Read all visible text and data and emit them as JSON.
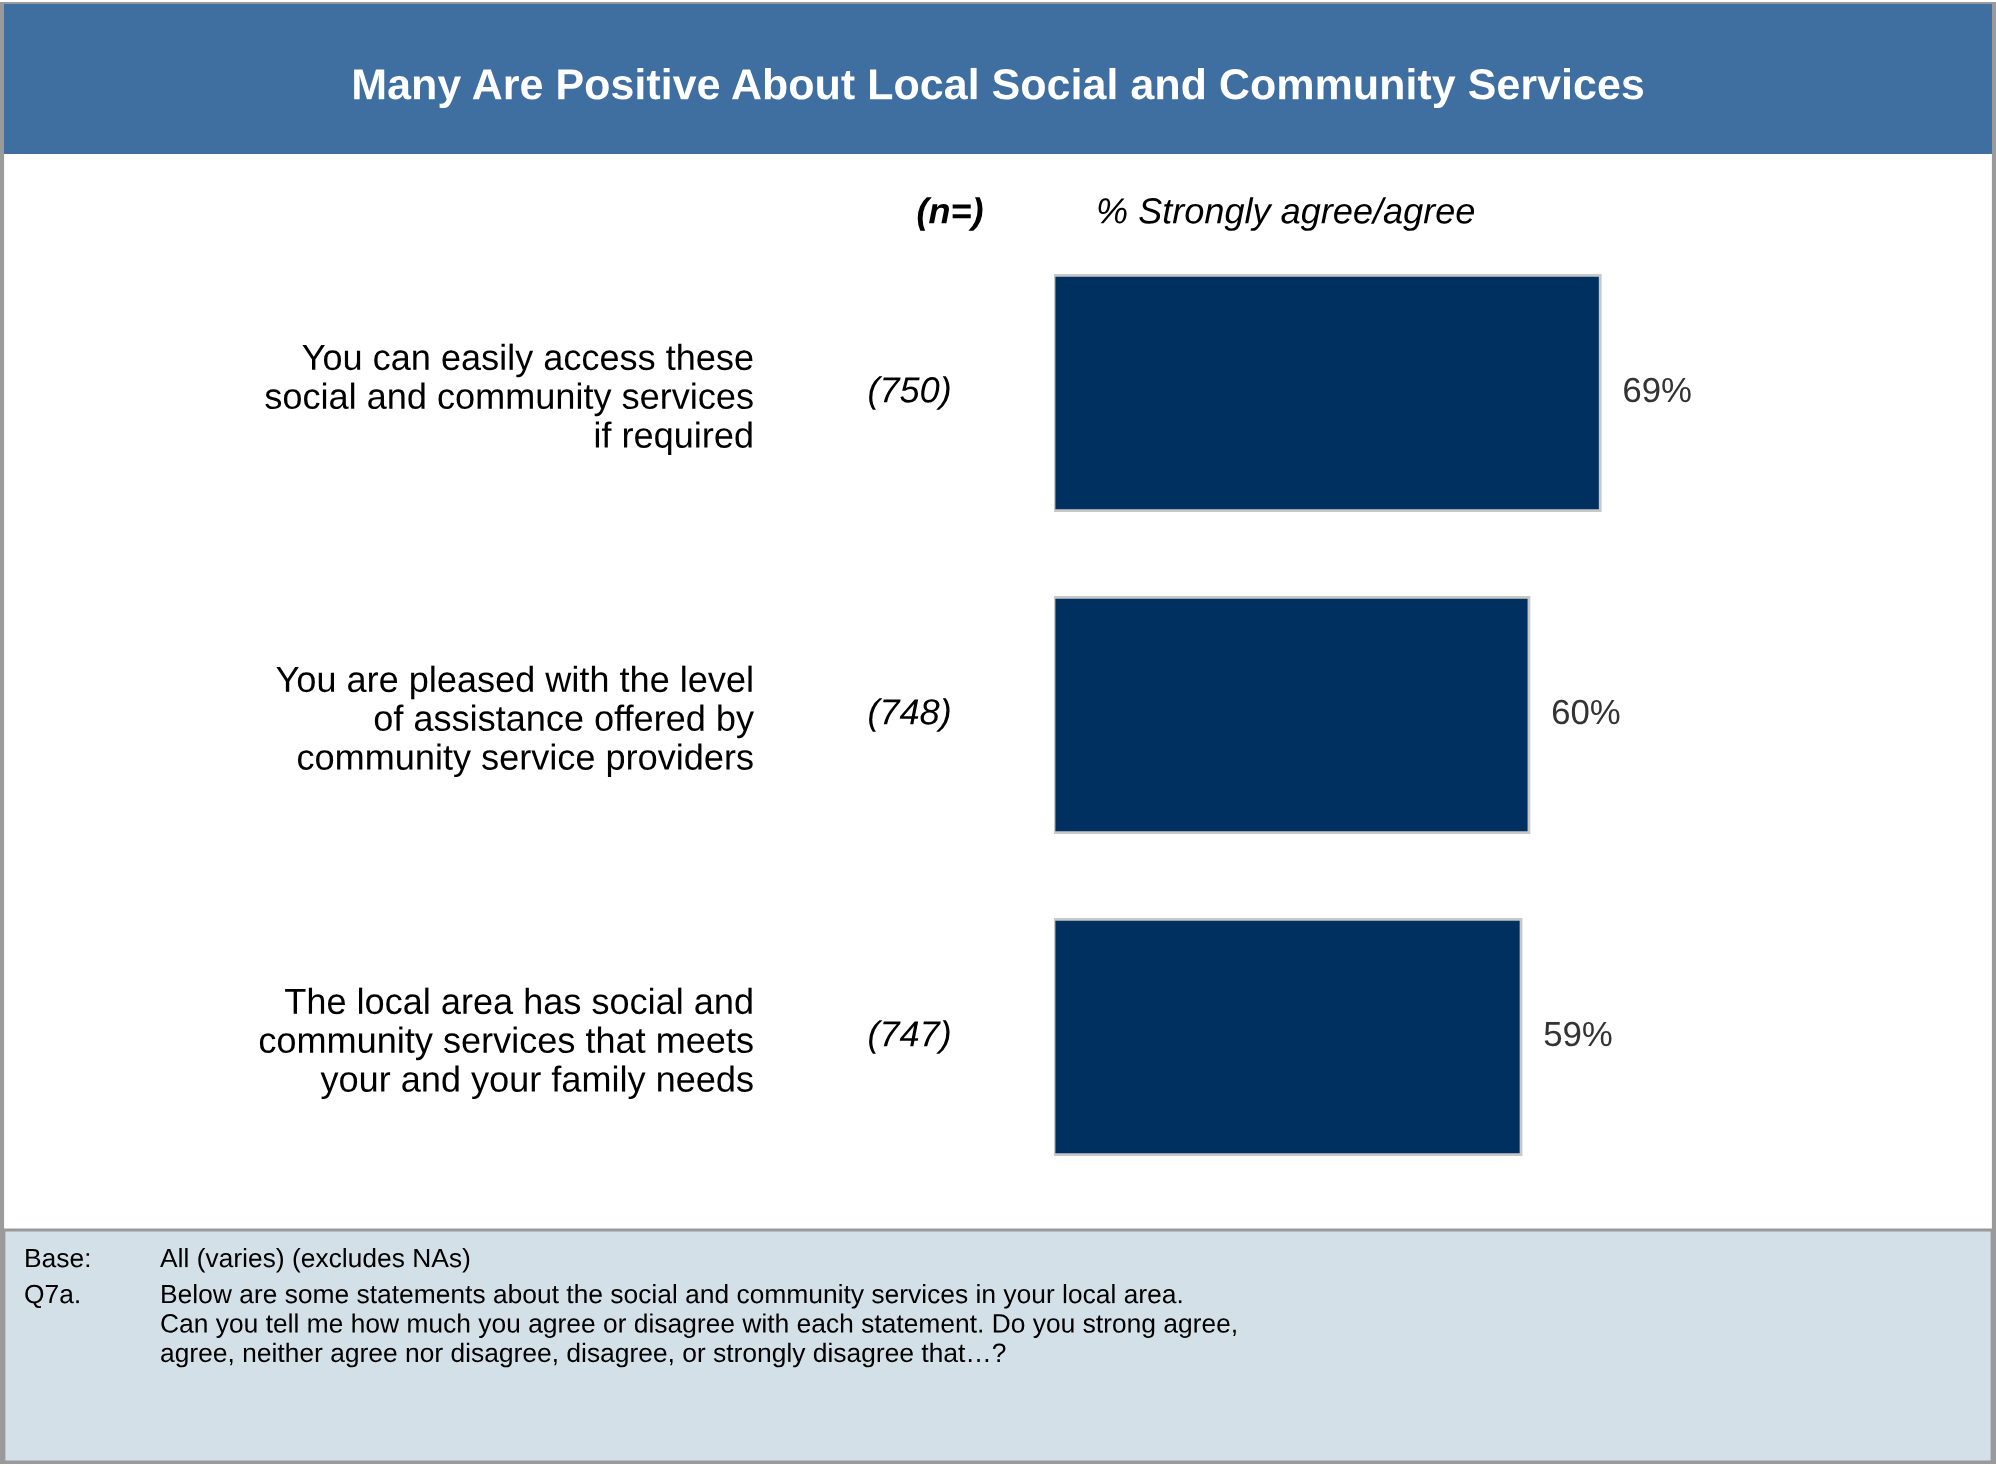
{
  "chart_data": {
    "type": "bar",
    "orientation": "horizontal",
    "title": "Many Are Positive About Local Social and Community Services",
    "xlabel": "% Strongly agree/agree",
    "categories": [
      "You can easily access these\nsocial and community services\nif required",
      "You are pleased with the level\nof assistance offered by\ncommunity service providers",
      "The local area has social and\ncommunity services that meets\nyour and your family needs"
    ],
    "values": [
      69,
      60,
      59
    ],
    "color": "#00305f",
    "value_labels": [
      "69%",
      "60%",
      "59%"
    ],
    "tick_labels": "y",
    "grid": false,
    "legend": false,
    "annotations": [
      "(n=)",
      "(750)",
      "(748)",
      "(747)",
      "Base:\tAll (varies) (excludes NAs)",
      "Q7a.\tBelow are some statements about the social and community services in your local area.\nCan you tell me how much you agree or disagree with each statement. Do you strong agree,\nagree, neither agree nor disagree, disagree, or strongly disagree that…?"
    ]
  }
}
